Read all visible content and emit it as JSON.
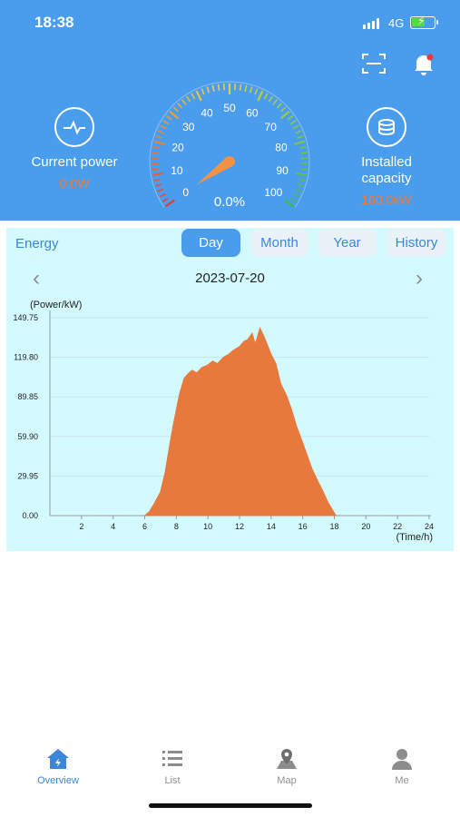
{
  "status_bar": {
    "time": "18:38",
    "network": "4G",
    "battery_level": 0.6
  },
  "header": {
    "icons": [
      "scan-icon",
      "bell-icon"
    ],
    "notification_dot": true,
    "current_power": {
      "label": "Current power",
      "value": "0.0W",
      "icon": "pulse-icon"
    },
    "installed_capacity": {
      "label_line1": "Installed",
      "label_line2": "capacity",
      "value": "160.0kW",
      "icon": "database-icon"
    },
    "gauge": {
      "ticks": [
        "0",
        "10",
        "20",
        "30",
        "40",
        "50",
        "60",
        "70",
        "80",
        "90",
        "100"
      ],
      "needle_value": 0,
      "percent_text": "0.0%"
    },
    "colors": {
      "header_bg": "#4a9ded",
      "value_orange": "#f07a3a"
    }
  },
  "energy": {
    "title": "Energy",
    "tabs": [
      {
        "label": "Day",
        "active": true
      },
      {
        "label": "Month",
        "active": false
      },
      {
        "label": "Year",
        "active": false
      },
      {
        "label": "History",
        "active": false
      }
    ],
    "date": "2023-07-20",
    "prev_icon": "chevron-left-icon",
    "next_icon": "chevron-right-icon"
  },
  "chart_data": {
    "type": "area",
    "title": "",
    "xlabel": "(Time/h)",
    "ylabel": "(Power/kW)",
    "xlim": [
      0,
      24
    ],
    "ylim": [
      0,
      149.75
    ],
    "x_ticks": [
      "2",
      "4",
      "6",
      "8",
      "10",
      "12",
      "14",
      "16",
      "18",
      "20",
      "22",
      "24"
    ],
    "y_ticks": [
      "0.00",
      "29.95",
      "59.90",
      "89.85",
      "119.80",
      "149.75"
    ],
    "grid": true,
    "color": "#e8793d",
    "series": [
      {
        "x": [
          6.0,
          6.3,
          6.6,
          7.0,
          7.3,
          7.6,
          7.8,
          8.0,
          8.2,
          8.5,
          8.8,
          9.0,
          9.3,
          9.6,
          10.0,
          10.3,
          10.6,
          11.0,
          11.3,
          11.6,
          12.0,
          12.3,
          12.5,
          12.8,
          13.0,
          13.3,
          13.6,
          14.0,
          14.3,
          14.6,
          15.0,
          15.3,
          15.6,
          16.0,
          16.3,
          16.6,
          17.0,
          17.3,
          17.6,
          17.9,
          18.1
        ],
        "y": [
          0,
          3,
          9,
          18,
          33,
          55,
          68,
          80,
          92,
          104,
          108,
          110,
          108,
          112,
          114,
          117,
          115,
          120,
          122,
          125,
          128,
          132,
          133,
          138,
          130,
          142,
          134,
          122,
          115,
          100,
          90,
          80,
          68,
          55,
          45,
          35,
          25,
          18,
          10,
          4,
          0
        ]
      }
    ]
  },
  "bottom_nav": {
    "items": [
      {
        "label": "Overview",
        "icon": "home-icon",
        "active": true
      },
      {
        "label": "List",
        "icon": "list-icon",
        "active": false
      },
      {
        "label": "Map",
        "icon": "map-pin-icon",
        "active": false
      },
      {
        "label": "Me",
        "icon": "user-icon",
        "active": false
      }
    ]
  }
}
